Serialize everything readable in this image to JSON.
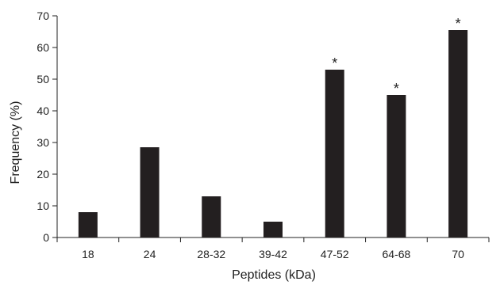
{
  "chart_data": {
    "type": "bar",
    "title": "",
    "xlabel": "Peptides (kDa)",
    "ylabel": "Frequency (%)",
    "ylim": [
      0,
      70
    ],
    "yticks": [
      0,
      10,
      20,
      30,
      40,
      50,
      60,
      70
    ],
    "categories": [
      "18",
      "24",
      "28-32",
      "39-42",
      "47-52",
      "64-68",
      "70"
    ],
    "values": [
      8,
      28.5,
      13,
      5,
      53,
      45,
      65.5
    ],
    "annotations": [
      "",
      "",
      "",
      "",
      "*",
      "*",
      "*"
    ],
    "grid": false,
    "legend": "none",
    "bar_color": "#231f20"
  }
}
